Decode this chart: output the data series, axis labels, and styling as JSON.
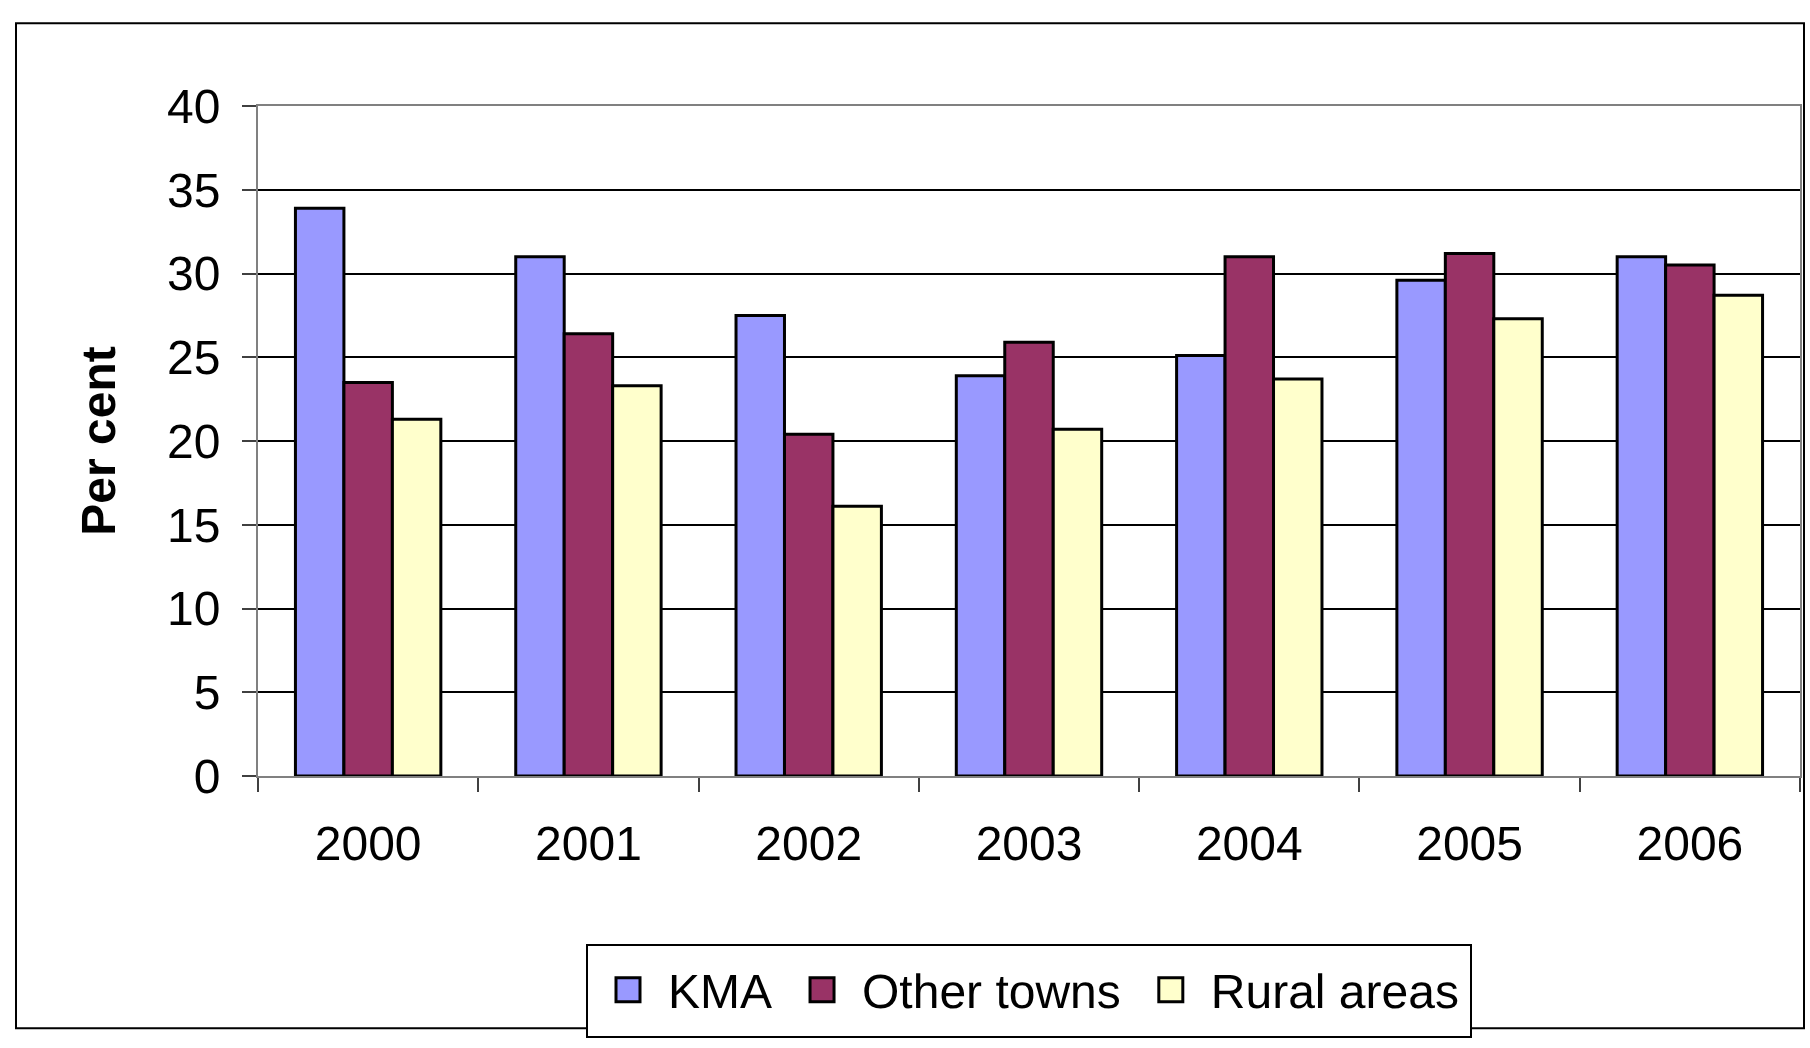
{
  "chart_data": {
    "type": "bar",
    "categories": [
      "2000",
      "2001",
      "2002",
      "2003",
      "2004",
      "2005",
      "2006"
    ],
    "ylabel": "Per cent",
    "ylim": [
      0,
      40
    ],
    "yticks": [
      0,
      5,
      10,
      15,
      20,
      25,
      30,
      35,
      40
    ],
    "grid": "y",
    "legend": "bottom",
    "series": [
      {
        "name": "KMA",
        "color": "#9999ff",
        "values": [
          33.9,
          31.0,
          27.5,
          23.9,
          25.1,
          29.6,
          31.0
        ]
      },
      {
        "name": "Other towns",
        "color": "#993366",
        "values": [
          23.5,
          26.4,
          20.4,
          25.9,
          31.0,
          31.2,
          30.5
        ]
      },
      {
        "name": "Rural areas",
        "color": "#ffffcc",
        "values": [
          21.3,
          23.3,
          16.1,
          20.7,
          23.7,
          27.3,
          28.7
        ]
      }
    ]
  }
}
